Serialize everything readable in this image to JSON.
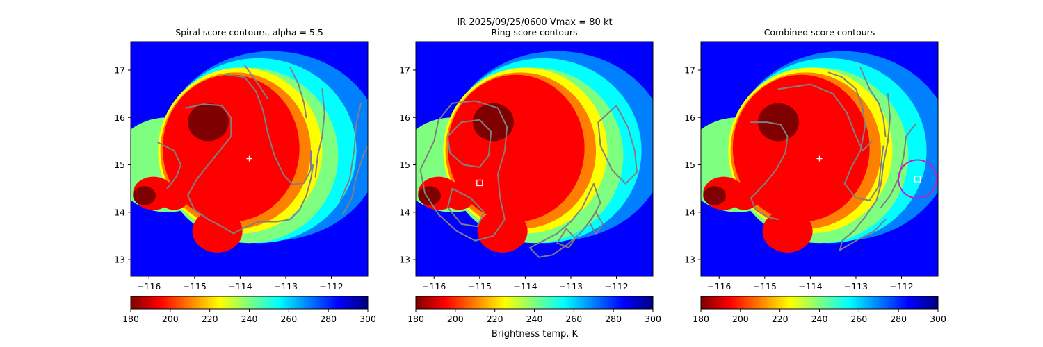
{
  "figure": {
    "suptitle": "IR  2025/09/25/0600    Vmax = 80 kt",
    "colorbar_label": "Brightness temp, K"
  },
  "colormap": {
    "name": "jet_r",
    "vmin": 180,
    "vmax": 300,
    "stops": [
      "#7f0000",
      "#ff0000",
      "#ff7f00",
      "#ffff00",
      "#7fff7f",
      "#00ffff",
      "#007fff",
      "#0000ff",
      "#00007f"
    ]
  },
  "colors": {
    "contour": "#808080",
    "center_marker": "#ffffff",
    "ring_circle": "#c020c0"
  },
  "chart_data": [
    {
      "type": "heatmap",
      "title": "Spiral score contours, alpha =  5.5",
      "xlim": [
        -116.4,
        -111.2
      ],
      "ylim": [
        12.65,
        17.6
      ],
      "xticks": [
        -116,
        -115,
        -114,
        -113,
        -112
      ],
      "yticks": [
        13,
        14,
        15,
        16,
        17
      ],
      "colorbar_ticks": [
        180,
        200,
        220,
        240,
        260,
        280,
        300
      ],
      "center_marker": {
        "shape": "plus",
        "x": -113.8,
        "y": 15.13
      },
      "contours": [
        [
          [
            -115.6,
            14.5
          ],
          [
            -115.4,
            14.75
          ],
          [
            -115.3,
            15.0
          ],
          [
            -115.45,
            15.3
          ],
          [
            -115.8,
            15.47
          ]
        ],
        [
          [
            -115.2,
            16.2
          ],
          [
            -114.8,
            16.28
          ],
          [
            -114.4,
            16.25
          ],
          [
            -114.2,
            16.0
          ],
          [
            -114.2,
            15.6
          ],
          [
            -114.45,
            15.3
          ],
          [
            -114.7,
            15.0
          ],
          [
            -114.95,
            14.7
          ],
          [
            -115.15,
            14.35
          ],
          [
            -115.0,
            14.05
          ],
          [
            -114.7,
            13.85
          ],
          [
            -114.4,
            13.7
          ],
          [
            -114.15,
            13.55
          ],
          [
            -113.85,
            13.7
          ],
          [
            -113.6,
            13.8
          ],
          [
            -113.2,
            13.8
          ],
          [
            -112.9,
            13.85
          ],
          [
            -112.7,
            14.05
          ],
          [
            -112.55,
            14.35
          ],
          [
            -112.45,
            14.7
          ],
          [
            -112.4,
            15.0
          ]
        ],
        [
          [
            -114.3,
            16.9
          ],
          [
            -113.9,
            16.85
          ],
          [
            -113.65,
            16.55
          ],
          [
            -113.5,
            16.15
          ],
          [
            -113.4,
            15.7
          ],
          [
            -113.25,
            15.2
          ],
          [
            -113.05,
            14.8
          ],
          [
            -112.85,
            14.58
          ],
          [
            -112.6,
            14.62
          ],
          [
            -112.45,
            14.9
          ],
          [
            -112.45,
            15.3
          ]
        ],
        [
          [
            -113.9,
            17.1
          ],
          [
            -113.6,
            16.7
          ],
          [
            -113.4,
            16.4
          ]
        ],
        [
          [
            -112.9,
            17.05
          ],
          [
            -112.72,
            16.7
          ],
          [
            -112.6,
            16.3
          ],
          [
            -112.55,
            16.0
          ]
        ],
        [
          [
            -112.2,
            16.6
          ],
          [
            -112.15,
            16.1
          ],
          [
            -112.2,
            15.6
          ],
          [
            -112.3,
            15.2
          ],
          [
            -112.35,
            14.75
          ]
        ],
        [
          [
            -111.35,
            16.3
          ],
          [
            -111.45,
            15.9
          ],
          [
            -111.5,
            15.3
          ],
          [
            -111.6,
            14.7
          ],
          [
            -111.8,
            14.25
          ]
        ],
        [
          [
            -111.1,
            15.6
          ],
          [
            -111.3,
            15.2
          ],
          [
            -111.45,
            14.75
          ],
          [
            -111.55,
            14.3
          ],
          [
            -111.75,
            13.95
          ]
        ]
      ]
    },
    {
      "type": "heatmap",
      "title": "Ring score contours",
      "xlim": [
        -116.4,
        -111.2
      ],
      "ylim": [
        12.65,
        17.6
      ],
      "xticks": [
        -116,
        -115,
        -114,
        -113,
        -112
      ],
      "yticks": [
        13,
        14,
        15,
        16,
        17
      ],
      "colorbar_ticks": [
        180,
        200,
        220,
        240,
        260,
        280,
        300
      ],
      "center_marker": {
        "shape": "square",
        "x": -115.0,
        "y": 14.62
      },
      "contours": [
        [
          [
            -116.0,
            15.5
          ],
          [
            -115.9,
            15.95
          ],
          [
            -115.6,
            16.3
          ],
          [
            -115.1,
            16.35
          ],
          [
            -114.6,
            16.2
          ],
          [
            -114.4,
            15.8
          ],
          [
            -114.45,
            15.3
          ],
          [
            -114.6,
            14.8
          ],
          [
            -114.55,
            14.3
          ],
          [
            -114.45,
            13.85
          ],
          [
            -114.7,
            13.5
          ],
          [
            -115.1,
            13.4
          ],
          [
            -115.5,
            13.6
          ],
          [
            -115.9,
            13.95
          ],
          [
            -116.2,
            14.4
          ],
          [
            -116.3,
            14.9
          ],
          [
            -116.0,
            15.5
          ]
        ],
        [
          [
            -115.7,
            15.6
          ],
          [
            -115.4,
            15.9
          ],
          [
            -115.0,
            15.95
          ],
          [
            -114.75,
            15.7
          ],
          [
            -114.8,
            15.2
          ],
          [
            -115.0,
            14.95
          ],
          [
            -115.35,
            15.0
          ],
          [
            -115.65,
            15.25
          ],
          [
            -115.7,
            15.6
          ]
        ],
        [
          [
            -115.6,
            14.5
          ],
          [
            -115.2,
            14.3
          ],
          [
            -114.9,
            14.0
          ],
          [
            -115.05,
            13.7
          ],
          [
            -115.4,
            13.75
          ],
          [
            -115.7,
            14.1
          ],
          [
            -115.6,
            14.5
          ]
        ],
        [
          [
            -112.0,
            16.25
          ],
          [
            -111.75,
            15.8
          ],
          [
            -111.6,
            15.3
          ],
          [
            -111.55,
            14.85
          ],
          [
            -111.8,
            14.6
          ],
          [
            -112.1,
            14.9
          ],
          [
            -112.35,
            15.4
          ],
          [
            -112.4,
            15.9
          ],
          [
            -112.0,
            16.25
          ]
        ],
        [
          [
            -112.5,
            14.6
          ],
          [
            -112.35,
            14.2
          ],
          [
            -112.55,
            13.85
          ],
          [
            -112.8,
            13.55
          ],
          [
            -113.1,
            13.3
          ],
          [
            -113.4,
            13.1
          ],
          [
            -113.7,
            13.05
          ],
          [
            -113.9,
            13.25
          ],
          [
            -113.6,
            13.4
          ],
          [
            -113.3,
            13.55
          ],
          [
            -113.0,
            13.8
          ],
          [
            -112.75,
            14.1
          ],
          [
            -112.5,
            14.6
          ]
        ],
        [
          [
            -113.1,
            13.65
          ],
          [
            -112.9,
            13.45
          ],
          [
            -113.05,
            13.25
          ],
          [
            -113.3,
            13.35
          ],
          [
            -113.1,
            13.65
          ]
        ],
        [
          [
            -112.45,
            14.0
          ],
          [
            -112.3,
            13.75
          ],
          [
            -112.45,
            13.55
          ],
          [
            -112.6,
            13.8
          ],
          [
            -112.45,
            14.0
          ]
        ]
      ]
    },
    {
      "type": "heatmap",
      "title": "Combined score contours",
      "xlim": [
        -116.4,
        -111.2
      ],
      "ylim": [
        12.65,
        17.6
      ],
      "xticks": [
        -116,
        -115,
        -114,
        -113,
        -112
      ],
      "yticks": [
        13,
        14,
        15,
        16,
        17
      ],
      "colorbar_ticks": [
        180,
        200,
        220,
        240,
        260,
        280,
        300
      ],
      "center_marker": {
        "shape": "plus",
        "x": -113.8,
        "y": 15.13
      },
      "square_marker": {
        "x": -111.65,
        "y": 14.7
      },
      "ring_circle": {
        "x": -111.65,
        "y": 14.7,
        "r_deg": 0.42
      },
      "contours": [
        [
          [
            -115.3,
            14.3
          ],
          [
            -115.0,
            14.6
          ],
          [
            -114.75,
            14.9
          ],
          [
            -114.55,
            15.25
          ],
          [
            -114.5,
            15.6
          ],
          [
            -114.65,
            15.85
          ],
          [
            -114.95,
            15.9
          ],
          [
            -115.3,
            15.9
          ]
        ],
        [
          [
            -115.3,
            14.3
          ],
          [
            -115.2,
            14.05
          ],
          [
            -114.95,
            13.9
          ],
          [
            -114.7,
            13.85
          ]
        ],
        [
          [
            -113.6,
            16.95
          ],
          [
            -113.3,
            16.85
          ],
          [
            -113.0,
            16.6
          ],
          [
            -112.85,
            16.2
          ],
          [
            -112.8,
            15.8
          ],
          [
            -112.9,
            15.3
          ],
          [
            -113.1,
            14.95
          ],
          [
            -113.25,
            14.6
          ],
          [
            -113.0,
            14.3
          ],
          [
            -112.7,
            14.25
          ],
          [
            -112.5,
            14.55
          ],
          [
            -112.45,
            15.0
          ],
          [
            -112.4,
            15.4
          ]
        ],
        [
          [
            -114.7,
            16.6
          ],
          [
            -114.0,
            16.7
          ],
          [
            -113.5,
            16.5
          ],
          [
            -113.2,
            16.1
          ],
          [
            -113.0,
            15.6
          ],
          [
            -112.85,
            15.3
          ],
          [
            -112.65,
            15.5
          ]
        ],
        [
          [
            -112.9,
            17.05
          ],
          [
            -112.7,
            16.6
          ],
          [
            -112.5,
            16.3
          ],
          [
            -112.4,
            16.0
          ],
          [
            -112.35,
            15.6
          ]
        ],
        [
          [
            -112.3,
            16.5
          ],
          [
            -112.25,
            16.0
          ],
          [
            -112.3,
            15.5
          ],
          [
            -112.4,
            15.0
          ],
          [
            -112.45,
            14.6
          ],
          [
            -112.55,
            14.25
          ],
          [
            -112.8,
            13.9
          ],
          [
            -113.05,
            13.6
          ],
          [
            -113.3,
            13.4
          ],
          [
            -113.35,
            13.2
          ]
        ],
        [
          [
            -111.7,
            15.85
          ],
          [
            -111.9,
            15.6
          ],
          [
            -111.95,
            15.2
          ],
          [
            -112.05,
            14.75
          ],
          [
            -112.25,
            14.35
          ],
          [
            -112.45,
            14.1
          ]
        ],
        [
          [
            -113.35,
            13.2
          ],
          [
            -113.0,
            13.4
          ],
          [
            -112.6,
            13.6
          ],
          [
            -112.35,
            13.85
          ]
        ]
      ]
    }
  ]
}
